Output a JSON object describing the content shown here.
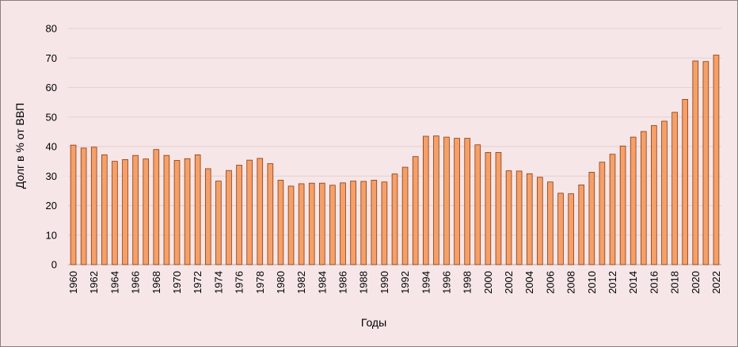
{
  "chart_data": {
    "type": "bar",
    "title": "",
    "xlabel": "Годы",
    "ylabel": "Долг в % от ВВП",
    "ylim": [
      0,
      80
    ],
    "yticks": [
      0,
      10,
      20,
      30,
      40,
      50,
      60,
      70,
      80
    ],
    "grid": "horizontal",
    "legend": "none",
    "colors": {
      "bar_fill": "#f4a068",
      "bar_stroke": "#8a3a10",
      "background": "#f6e6e7",
      "grid": "#e6cfd1"
    },
    "categories": [
      1960,
      1961,
      1962,
      1963,
      1964,
      1965,
      1966,
      1967,
      1968,
      1969,
      1970,
      1971,
      1972,
      1973,
      1974,
      1975,
      1976,
      1977,
      1978,
      1979,
      1980,
      1981,
      1982,
      1983,
      1984,
      1985,
      1986,
      1987,
      1988,
      1989,
      1990,
      1991,
      1992,
      1993,
      1994,
      1995,
      1996,
      1997,
      1998,
      1999,
      2000,
      2001,
      2002,
      2003,
      2004,
      2005,
      2006,
      2007,
      2008,
      2009,
      2010,
      2011,
      2012,
      2013,
      2014,
      2015,
      2016,
      2017,
      2018,
      2019,
      2020,
      2021,
      2022
    ],
    "tick_labels": [
      "1960",
      "1962",
      "1964",
      "1966",
      "1968",
      "1970",
      "1972",
      "1974",
      "1976",
      "1978",
      "1980",
      "1982",
      "1984",
      "1986",
      "1988",
      "1990",
      "1992",
      "1994",
      "1996",
      "1998",
      "2000",
      "2002",
      "2004",
      "2006",
      "2008",
      "2010",
      "2012",
      "2014",
      "2016",
      "2018",
      "2020",
      "2022"
    ],
    "values": [
      40.5,
      39.5,
      39.8,
      37.2,
      35.0,
      35.6,
      37.0,
      35.8,
      39.0,
      37.0,
      35.3,
      35.9,
      37.2,
      32.5,
      28.3,
      31.9,
      33.7,
      35.4,
      36.0,
      34.2,
      28.6,
      26.6,
      27.4,
      27.6,
      27.6,
      26.9,
      27.7,
      28.3,
      28.2,
      28.6,
      28.0,
      30.7,
      33.0,
      36.6,
      43.5,
      43.6,
      43.2,
      42.8,
      42.8,
      40.6,
      38.0,
      38.0,
      31.8,
      31.7,
      30.8,
      29.6,
      28.0,
      24.2,
      24.0,
      27.0,
      31.3,
      34.7,
      37.4,
      40.2,
      43.2,
      45.1,
      47.1,
      48.6,
      51.6,
      56.0,
      69.0,
      68.8,
      71.0
    ]
  }
}
